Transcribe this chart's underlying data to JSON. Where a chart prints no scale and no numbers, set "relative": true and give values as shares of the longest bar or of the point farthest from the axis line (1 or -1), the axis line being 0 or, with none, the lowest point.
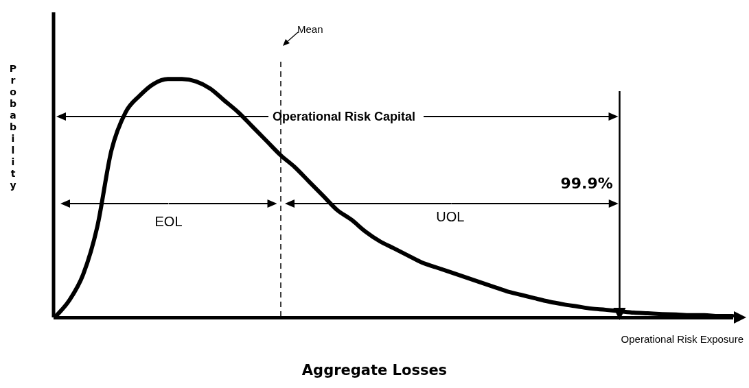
{
  "chart_data": {
    "type": "line",
    "relative": true,
    "xlabel": "Aggregate Losses",
    "ylabel": "Probability",
    "categories": [
      null,
      null,
      null,
      null,
      null,
      null,
      null,
      null,
      null,
      null,
      null,
      null,
      null,
      null,
      null,
      null,
      null,
      null,
      null,
      null,
      null,
      null,
      null,
      null,
      null,
      null,
      null,
      null,
      null,
      null,
      null,
      null,
      null,
      null,
      null,
      null,
      null,
      null,
      null,
      null,
      null,
      null,
      null,
      null,
      null,
      null,
      null,
      null,
      null
    ],
    "series": [
      {
        "color": "#000000",
        "values": [
          0,
          0.07,
          0.18,
          0.38,
          0.7,
          0.86,
          0.93,
          0.98,
          1,
          1,
          0.99,
          0.96,
          0.91,
          0.86,
          0.8,
          0.74,
          0.68,
          0.63,
          0.57,
          0.51,
          0.45,
          0.41,
          0.36,
          0.32,
          0.29,
          0.26,
          0.23,
          0.21,
          0.19,
          0.17,
          0.15,
          0.13,
          0.11,
          0.095,
          0.08,
          0.066,
          0.055,
          0.046,
          0.037,
          0.032,
          0.026,
          0.02,
          0.017,
          0.014,
          0.012,
          0.009,
          0.009,
          0.006,
          0.006
        ]
      }
    ],
    "annotations": [
      "Operational Risk Capital",
      "EOL",
      "UOL",
      "Operational Risk Exposure",
      "Mean",
      "99.9%"
    ],
    "marker": "none",
    "line_style": "solid",
    "grid": false,
    "legend": false,
    "tick_labels": false
  }
}
